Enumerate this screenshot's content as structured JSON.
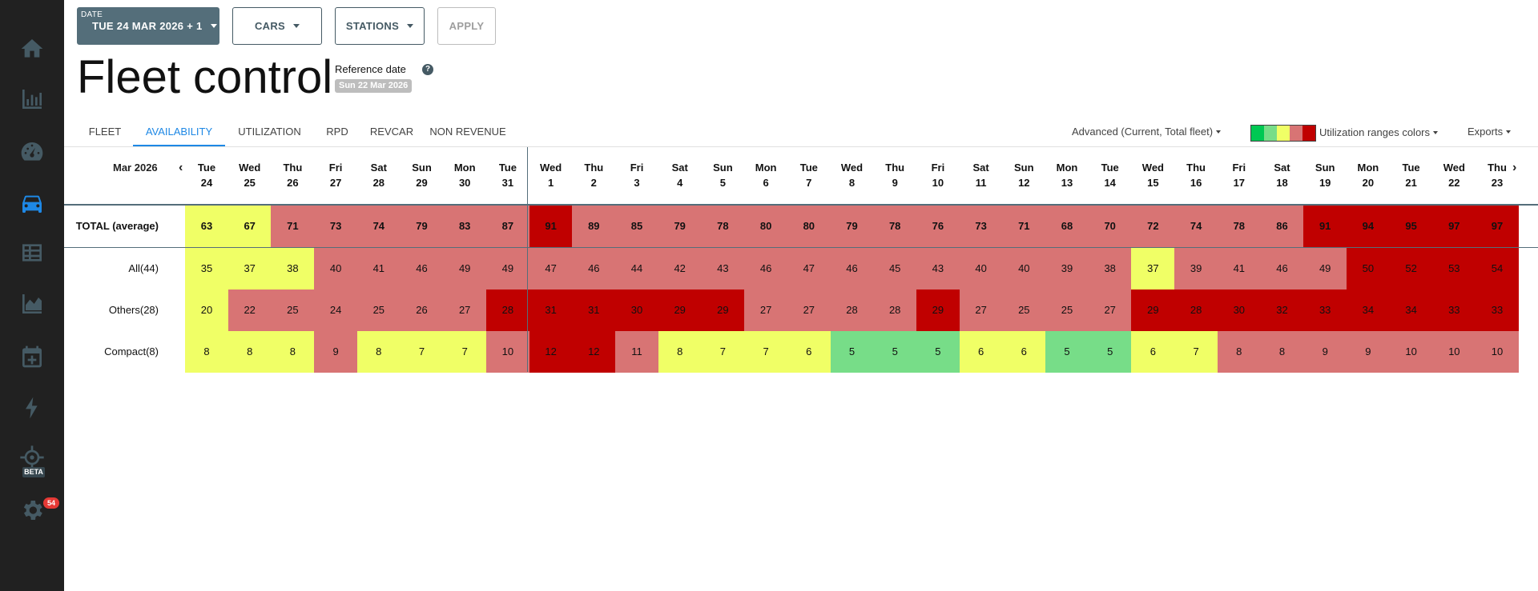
{
  "filters": {
    "date_caption": "DATE",
    "date_value": "TUE 24 MAR 2026 + 1",
    "cars_label": "CARS",
    "stations_label": "STATIONS",
    "apply_label": "APPLY"
  },
  "page": {
    "title": "Fleet control",
    "reference_label": "Reference date",
    "reference_date": "Sun 22 Mar 2026"
  },
  "tabs": [
    {
      "label": "FLEET",
      "active": false
    },
    {
      "label": "AVAILABILITY",
      "active": true
    },
    {
      "label": "UTILIZATION",
      "active": false
    },
    {
      "label": "RPD",
      "active": false
    },
    {
      "label": "REVCAR",
      "active": false
    },
    {
      "label": "NON REVENUE",
      "active": false
    }
  ],
  "toolbar": {
    "advanced_label": "Advanced (Current, Total fleet)",
    "ranges_label": "Utilization ranges colors",
    "exports_label": "Exports",
    "legend_colors": [
      "#00c853",
      "#77dd88",
      "#f0ff66",
      "#d87474",
      "#c00000"
    ]
  },
  "sidebar": {
    "items": [
      "home-icon",
      "bar-chart-icon",
      "speedometer-icon",
      "car-icon",
      "table-icon",
      "area-chart-icon",
      "calendar-plus-icon",
      "lightning-icon",
      "crosshair-icon",
      "gear-icon"
    ],
    "beta_label": "BETA",
    "notification_count": "54"
  },
  "grid": {
    "month_label": "Mar 2026",
    "days": [
      {
        "dow": "Tue",
        "day": "24"
      },
      {
        "dow": "Wed",
        "day": "25"
      },
      {
        "dow": "Thu",
        "day": "26"
      },
      {
        "dow": "Fri",
        "day": "27"
      },
      {
        "dow": "Sat",
        "day": "28"
      },
      {
        "dow": "Sun",
        "day": "29"
      },
      {
        "dow": "Mon",
        "day": "30"
      },
      {
        "dow": "Tue",
        "day": "31"
      },
      {
        "dow": "Wed",
        "day": "1"
      },
      {
        "dow": "Thu",
        "day": "2"
      },
      {
        "dow": "Fri",
        "day": "3"
      },
      {
        "dow": "Sat",
        "day": "4"
      },
      {
        "dow": "Sun",
        "day": "5"
      },
      {
        "dow": "Mon",
        "day": "6"
      },
      {
        "dow": "Tue",
        "day": "7"
      },
      {
        "dow": "Wed",
        "day": "8"
      },
      {
        "dow": "Thu",
        "day": "9"
      },
      {
        "dow": "Fri",
        "day": "10"
      },
      {
        "dow": "Sat",
        "day": "11"
      },
      {
        "dow": "Sun",
        "day": "12"
      },
      {
        "dow": "Mon",
        "day": "13"
      },
      {
        "dow": "Tue",
        "day": "14"
      },
      {
        "dow": "Wed",
        "day": "15"
      },
      {
        "dow": "Thu",
        "day": "16"
      },
      {
        "dow": "Fri",
        "day": "17"
      },
      {
        "dow": "Sat",
        "day": "18"
      },
      {
        "dow": "Sun",
        "day": "19"
      },
      {
        "dow": "Mon",
        "day": "20"
      },
      {
        "dow": "Tue",
        "day": "21"
      },
      {
        "dow": "Wed",
        "day": "22"
      },
      {
        "dow": "Thu",
        "day": "23"
      }
    ],
    "level_colors": {
      "Y": "#f0ff66",
      "R": "#d87474",
      "D": "#c00000",
      "G": "#77dd88"
    },
    "rows": [
      {
        "label": "TOTAL (average)",
        "total": true,
        "values": [
          "63",
          "67",
          "71",
          "73",
          "74",
          "79",
          "83",
          "87",
          "91",
          "89",
          "85",
          "79",
          "78",
          "80",
          "80",
          "79",
          "78",
          "76",
          "73",
          "71",
          "68",
          "70",
          "72",
          "74",
          "78",
          "86",
          "91",
          "94",
          "95",
          "97",
          "97"
        ],
        "levels": [
          "Y",
          "Y",
          "R",
          "R",
          "R",
          "R",
          "R",
          "R",
          "D",
          "R",
          "R",
          "R",
          "R",
          "R",
          "R",
          "R",
          "R",
          "R",
          "R",
          "R",
          "R",
          "R",
          "R",
          "R",
          "R",
          "R",
          "D",
          "D",
          "D",
          "D",
          "D"
        ]
      },
      {
        "label": "All(44)",
        "total": false,
        "values": [
          "35",
          "37",
          "38",
          "40",
          "41",
          "46",
          "49",
          "49",
          "47",
          "46",
          "44",
          "42",
          "43",
          "46",
          "47",
          "46",
          "45",
          "43",
          "40",
          "40",
          "39",
          "38",
          "37",
          "39",
          "41",
          "46",
          "49",
          "50",
          "52",
          "53",
          "54"
        ],
        "levels": [
          "Y",
          "Y",
          "Y",
          "R",
          "R",
          "R",
          "R",
          "R",
          "R",
          "R",
          "R",
          "R",
          "R",
          "R",
          "R",
          "R",
          "R",
          "R",
          "R",
          "R",
          "R",
          "R",
          "Y",
          "R",
          "R",
          "R",
          "R",
          "D",
          "D",
          "D",
          "D"
        ]
      },
      {
        "label": "Others(28)",
        "total": false,
        "values": [
          "20",
          "22",
          "25",
          "24",
          "25",
          "26",
          "27",
          "28",
          "31",
          "31",
          "30",
          "29",
          "29",
          "27",
          "27",
          "28",
          "28",
          "29",
          "27",
          "25",
          "25",
          "27",
          "29",
          "28",
          "30",
          "32",
          "33",
          "34",
          "34",
          "33",
          "33"
        ],
        "levels": [
          "Y",
          "R",
          "R",
          "R",
          "R",
          "R",
          "R",
          "D",
          "D",
          "D",
          "D",
          "D",
          "D",
          "R",
          "R",
          "R",
          "R",
          "D",
          "R",
          "R",
          "R",
          "R",
          "D",
          "D",
          "D",
          "D",
          "D",
          "D",
          "D",
          "D",
          "D"
        ]
      },
      {
        "label": "Compact(8)",
        "total": false,
        "values": [
          "8",
          "8",
          "8",
          "9",
          "8",
          "7",
          "7",
          "10",
          "12",
          "12",
          "11",
          "8",
          "7",
          "7",
          "6",
          "5",
          "5",
          "5",
          "6",
          "6",
          "5",
          "5",
          "6",
          "7",
          "8",
          "8",
          "9",
          "9",
          "10",
          "10",
          "10"
        ],
        "levels": [
          "Y",
          "Y",
          "Y",
          "R",
          "Y",
          "Y",
          "Y",
          "R",
          "D",
          "D",
          "R",
          "Y",
          "Y",
          "Y",
          "Y",
          "G",
          "G",
          "G",
          "Y",
          "Y",
          "G",
          "G",
          "Y",
          "Y",
          "R",
          "R",
          "R",
          "R",
          "R",
          "R",
          "R"
        ]
      }
    ]
  }
}
